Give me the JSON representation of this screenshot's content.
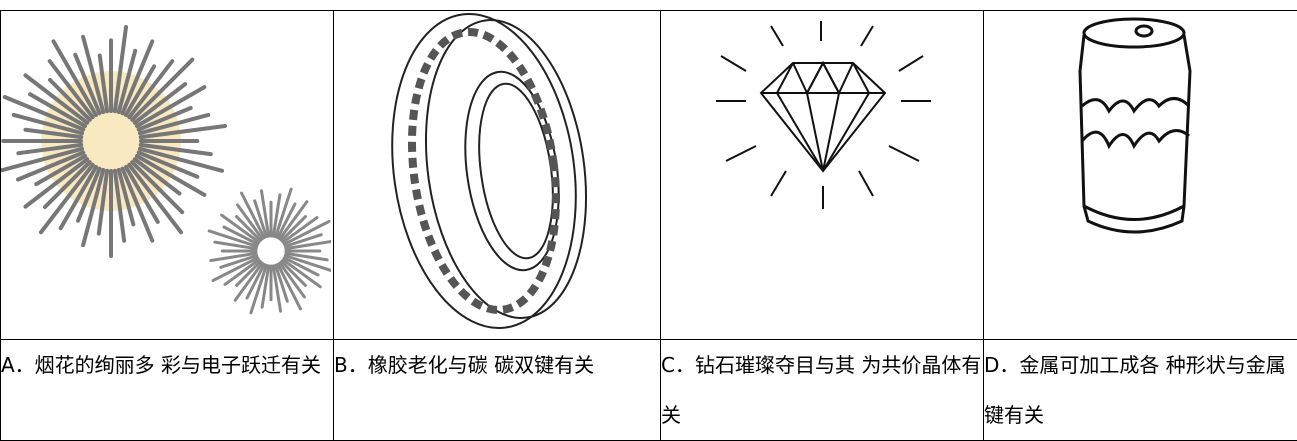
{
  "table": {
    "captions": [
      "A．烟花的绚丽多 彩与电子跃迁有关",
      "B．橡胶老化与碳 碳双键有关",
      "C．钻石璀璨夺目与其 为共价晶体有关",
      "D．金属可加工成各 种形状与金属键有关"
    ]
  }
}
